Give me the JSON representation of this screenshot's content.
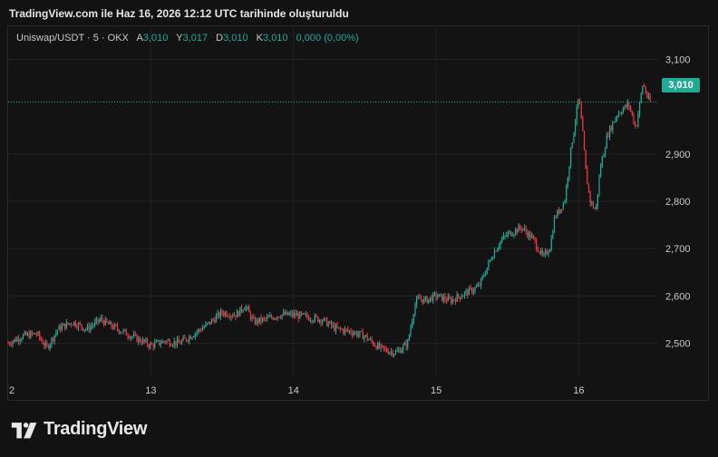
{
  "caption": "TradingView.com ile Haz 16, 2026 12:12 UTC tarihinde oluşturuldu",
  "legend": {
    "symbol": "Uniswap/USDT · 5 · OKX",
    "open_label": "A",
    "open": "3,010",
    "high_label": "Y",
    "high": "3,017",
    "low_label": "D",
    "low": "3,010",
    "close_label": "K",
    "close": "3,010",
    "change": "0,000 (0,00%)"
  },
  "last_price_label": "3,010",
  "brand": {
    "logo_text": "TradingView"
  },
  "colors": {
    "up": "#22ab94",
    "down": "#f23645",
    "background": "#131313",
    "grid": "#232323",
    "axis_text": "#c8c8c8"
  },
  "chart_data": {
    "type": "line",
    "title": "Uniswap/USDT · 5 · OKX",
    "interval": "5",
    "exchange": "OKX",
    "xlabel": "",
    "ylabel": "",
    "x_ticks": [
      "2",
      "13",
      "14",
      "15",
      "16"
    ],
    "y_ticks": [
      "2,500",
      "2,600",
      "2,700",
      "2,800",
      "2,900",
      "3,100"
    ],
    "ylim": [
      2.43,
      3.17
    ],
    "last_price": 3.01,
    "grid": true,
    "series": [
      {
        "name": "",
        "x": [
          12.0,
          12.1,
          12.2,
          12.27,
          12.35,
          12.45,
          12.55,
          12.65,
          12.7,
          12.8,
          12.9,
          13.0,
          13.1,
          13.2,
          13.3,
          13.4,
          13.5,
          13.6,
          13.66,
          13.72,
          13.8,
          13.9,
          14.0,
          14.1,
          14.2,
          14.3,
          14.4,
          14.5,
          14.6,
          14.65,
          14.72,
          14.8,
          14.85,
          14.88,
          14.92,
          15.0,
          15.1,
          15.2,
          15.3,
          15.4,
          15.45,
          15.5,
          15.6,
          15.68,
          15.75,
          15.8,
          15.83,
          15.9,
          15.95,
          16.0,
          16.03,
          16.05,
          16.08,
          16.12,
          16.15,
          16.2,
          16.27,
          16.35,
          16.4,
          16.45,
          16.48,
          16.5
        ],
        "values": [
          2.5,
          2.515,
          2.52,
          2.49,
          2.53,
          2.545,
          2.53,
          2.55,
          2.54,
          2.525,
          2.51,
          2.495,
          2.505,
          2.5,
          2.52,
          2.54,
          2.565,
          2.56,
          2.58,
          2.545,
          2.55,
          2.56,
          2.56,
          2.555,
          2.55,
          2.53,
          2.525,
          2.515,
          2.49,
          2.485,
          2.48,
          2.5,
          2.58,
          2.595,
          2.59,
          2.6,
          2.59,
          2.605,
          2.62,
          2.69,
          2.715,
          2.73,
          2.745,
          2.72,
          2.68,
          2.705,
          2.765,
          2.8,
          2.92,
          3.02,
          2.935,
          2.86,
          2.8,
          2.78,
          2.87,
          2.94,
          2.985,
          3.005,
          2.955,
          3.05,
          3.02,
          3.01
        ]
      }
    ]
  }
}
